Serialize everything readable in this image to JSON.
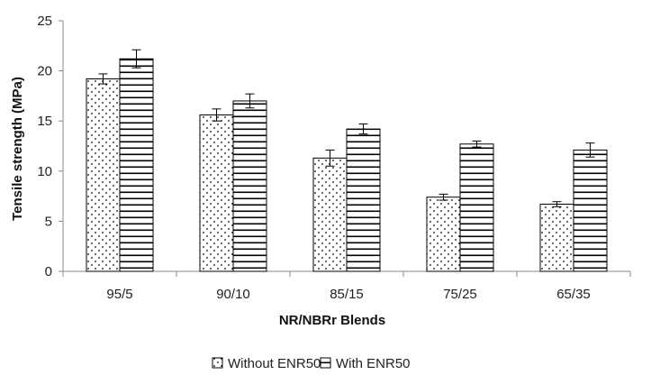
{
  "chart_data": {
    "type": "bar",
    "categories": [
      "95/5",
      "90/10",
      "85/15",
      "75/25",
      "65/35"
    ],
    "series": [
      {
        "name": "Without ENR50",
        "values": [
          19.2,
          15.6,
          11.3,
          7.4,
          6.7
        ],
        "errors": [
          0.5,
          0.6,
          0.8,
          0.3,
          0.25
        ],
        "pattern": "dots"
      },
      {
        "name": "With ENR50",
        "values": [
          21.2,
          17.0,
          14.2,
          12.7,
          12.1
        ],
        "errors": [
          0.9,
          0.7,
          0.5,
          0.3,
          0.7
        ],
        "pattern": "horizontal-lines"
      }
    ],
    "xlabel": "NR/NBRr Blends",
    "ylabel": "Tensile strength (MPa)",
    "ylim": [
      0,
      25
    ],
    "yticks": [
      0,
      5,
      10,
      15,
      20,
      25
    ],
    "grid": false,
    "legend_position": "bottom-center"
  }
}
